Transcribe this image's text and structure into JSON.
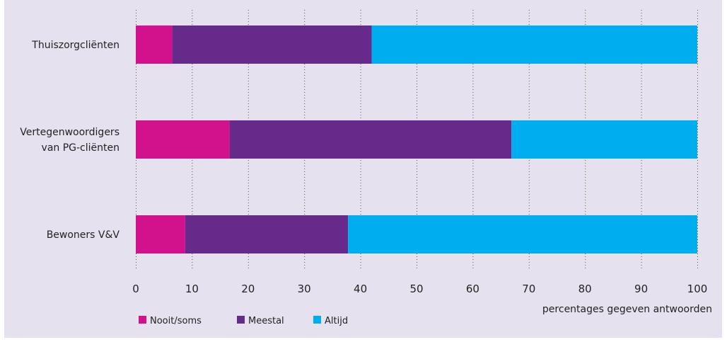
{
  "chart_data": {
    "type": "bar",
    "orientation": "horizontal",
    "stacked": true,
    "categories": [
      "Thuiszorgcliënten",
      "Vertegenwoordigers van PG-cliënten",
      "Bewoners V&V"
    ],
    "category_lines": [
      [
        "Thuiszorgcliënten"
      ],
      [
        "Vertegenwoordigers",
        "van PG-cliënten"
      ],
      [
        "Bewoners V&V"
      ]
    ],
    "series": [
      {
        "name": "Nooit/soms",
        "color": "#d1128c",
        "values": [
          6.5,
          16.7,
          8.8
        ]
      },
      {
        "name": "Meestal",
        "color": "#652a8a",
        "values": [
          35.5,
          50.2,
          29.0
        ]
      },
      {
        "name": "Altijd",
        "color": "#00aeef",
        "values": [
          58.0,
          33.1,
          62.2
        ]
      }
    ],
    "xlim": [
      0,
      100
    ],
    "xticks": [
      "0",
      "10",
      "20",
      "30",
      "40",
      "50",
      "60",
      "70",
      "80",
      "90",
      "100"
    ],
    "xlabel": "percentages gegeven antwoorden",
    "ylabel": "",
    "title": "",
    "grid": "vertical dotted",
    "legend_position": "bottom-left",
    "background_color": "#e6e1ee"
  }
}
